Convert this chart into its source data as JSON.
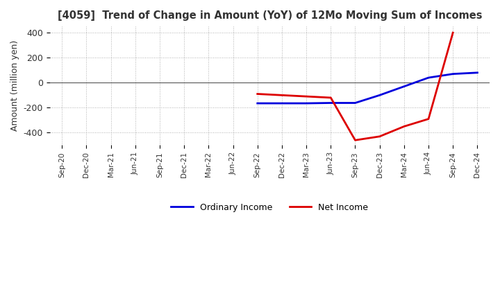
{
  "title": "[4059]  Trend of Change in Amount (YoY) of 12Mo Moving Sum of Incomes",
  "ylabel": "Amount (million yen)",
  "title_color": "#333333",
  "background_color": "#ffffff",
  "grid_color": "#b0b0b0",
  "x_labels": [
    "Sep-20",
    "Dec-20",
    "Mar-21",
    "Jun-21",
    "Sep-21",
    "Dec-21",
    "Mar-22",
    "Jun-22",
    "Sep-22",
    "Dec-22",
    "Mar-23",
    "Jun-23",
    "Sep-23",
    "Dec-23",
    "Mar-24",
    "Jun-24",
    "Sep-24",
    "Dec-24"
  ],
  "ordinary_income": [
    null,
    null,
    null,
    null,
    null,
    null,
    null,
    null,
    -165,
    -165,
    -165,
    -162,
    -162,
    -100,
    -30,
    40,
    70,
    80
  ],
  "net_income": [
    null,
    null,
    null,
    null,
    null,
    null,
    null,
    null,
    -90,
    -100,
    -110,
    -120,
    -460,
    -430,
    -350,
    -290,
    400,
    null
  ],
  "ordinary_color": "#0000dd",
  "net_color": "#dd0000",
  "ylim": [
    -500,
    450
  ],
  "yticks": [
    -400,
    -200,
    0,
    200,
    400
  ],
  "legend_ordinary": "Ordinary Income",
  "legend_net": "Net Income"
}
